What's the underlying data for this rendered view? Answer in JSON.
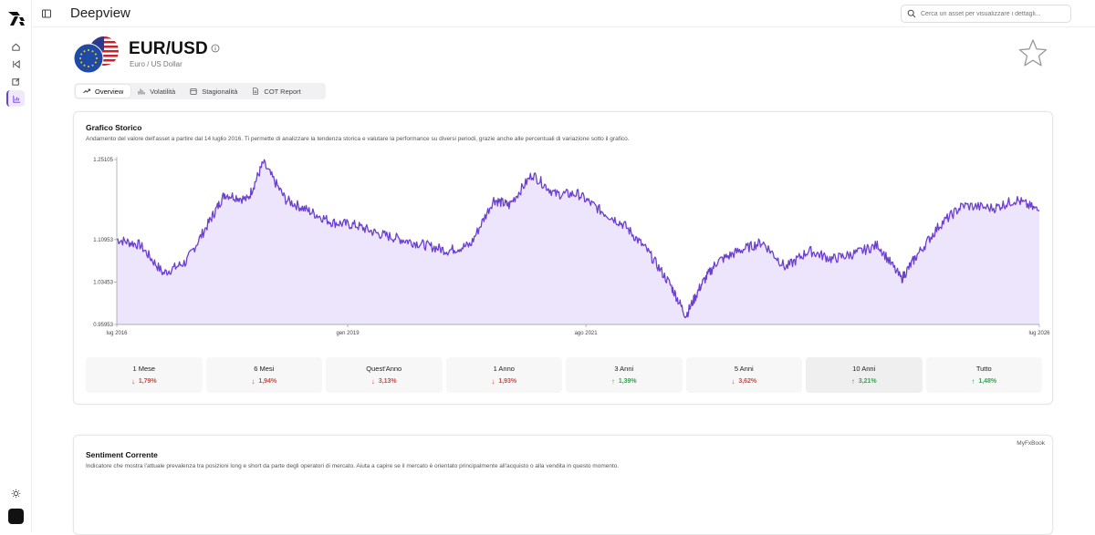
{
  "app": {
    "title": "Deepview"
  },
  "search": {
    "placeholder": "Cerca un asset per visualizzare i dettagli..."
  },
  "asset": {
    "symbol": "EUR/USD",
    "name": "Euro / US Dollar"
  },
  "tabs": [
    {
      "label": "Overview",
      "icon": "trend-icon"
    },
    {
      "label": "Volatilità",
      "icon": "bar-chart-icon"
    },
    {
      "label": "Stagionalità",
      "icon": "calendar-icon"
    },
    {
      "label": "COT Report",
      "icon": "document-icon"
    }
  ],
  "historical": {
    "title": "Grafico Storico",
    "description": "Andamento del valore dell'asset a partire dal 14 luglio 2016. Ti permette di analizzare la tendenza storica e valutare la performance su diversi periodi, grazie anche alle percentuali di variazione sotto il grafico."
  },
  "chart_data": {
    "type": "area",
    "ylim": [
      0.95953,
      1.25105
    ],
    "y_ticks": [
      "1.25105",
      "1.10953",
      "1.03453",
      "0.95953"
    ],
    "x_ticks": [
      "lug 2016",
      "gen 2019",
      "ago 2021",
      "lug 2026"
    ],
    "color": "#6b3fd0",
    "fill": "#ece5fb",
    "series": [
      {
        "x": [
          "2016-07",
          "2016-10",
          "2017-01",
          "2017-04",
          "2017-07",
          "2017-09",
          "2017-12",
          "2018-02",
          "2018-05",
          "2018-08",
          "2018-11",
          "2019-02",
          "2019-05",
          "2019-08",
          "2019-11",
          "2020-02",
          "2020-05",
          "2020-08",
          "2020-10",
          "2021-01",
          "2021-04",
          "2021-07",
          "2021-10",
          "2022-01",
          "2022-04",
          "2022-07",
          "2022-09",
          "2022-11",
          "2023-01",
          "2023-04",
          "2023-07",
          "2023-10",
          "2024-01",
          "2024-04",
          "2024-07",
          "2024-10",
          "2025-01",
          "2025-03",
          "2025-06",
          "2025-09",
          "2026-01",
          "2026-04",
          "2026-07"
        ],
        "values": [
          1.11,
          1.1,
          1.05,
          1.07,
          1.14,
          1.19,
          1.18,
          1.245,
          1.18,
          1.16,
          1.14,
          1.135,
          1.12,
          1.11,
          1.1,
          1.09,
          1.1,
          1.18,
          1.17,
          1.225,
          1.19,
          1.19,
          1.16,
          1.135,
          1.09,
          1.03,
          0.975,
          1.03,
          1.07,
          1.09,
          1.105,
          1.06,
          1.09,
          1.075,
          1.085,
          1.1,
          1.04,
          1.08,
          1.135,
          1.17,
          1.165,
          1.18,
          1.16
        ]
      }
    ]
  },
  "performance": [
    {
      "label": "1 Mese",
      "value": "1,79%",
      "direction": "down"
    },
    {
      "label": "6 Mesi",
      "value": "1,94%",
      "direction": "down"
    },
    {
      "label": "Quest'Anno",
      "value": "3,13%",
      "direction": "down"
    },
    {
      "label": "1 Anno",
      "value": "1,93%",
      "direction": "down"
    },
    {
      "label": "3 Anni",
      "value": "1,39%",
      "direction": "up"
    },
    {
      "label": "5 Anni",
      "value": "3,62%",
      "direction": "down"
    },
    {
      "label": "10 Anni",
      "value": "3,21%",
      "direction": "up"
    },
    {
      "label": "Tutto",
      "value": "1,48%",
      "direction": "up"
    }
  ],
  "sentiment": {
    "title": "Sentiment Corrente",
    "description": "Indicatore che mostra l'attuale prevalenza tra posizioni long e short da parte degli operatori di mercato. Aiuta a capire se il mercato è orientato principalmente all'acquisto o alla vendita in questo momento.",
    "source": "MyFxBook"
  }
}
